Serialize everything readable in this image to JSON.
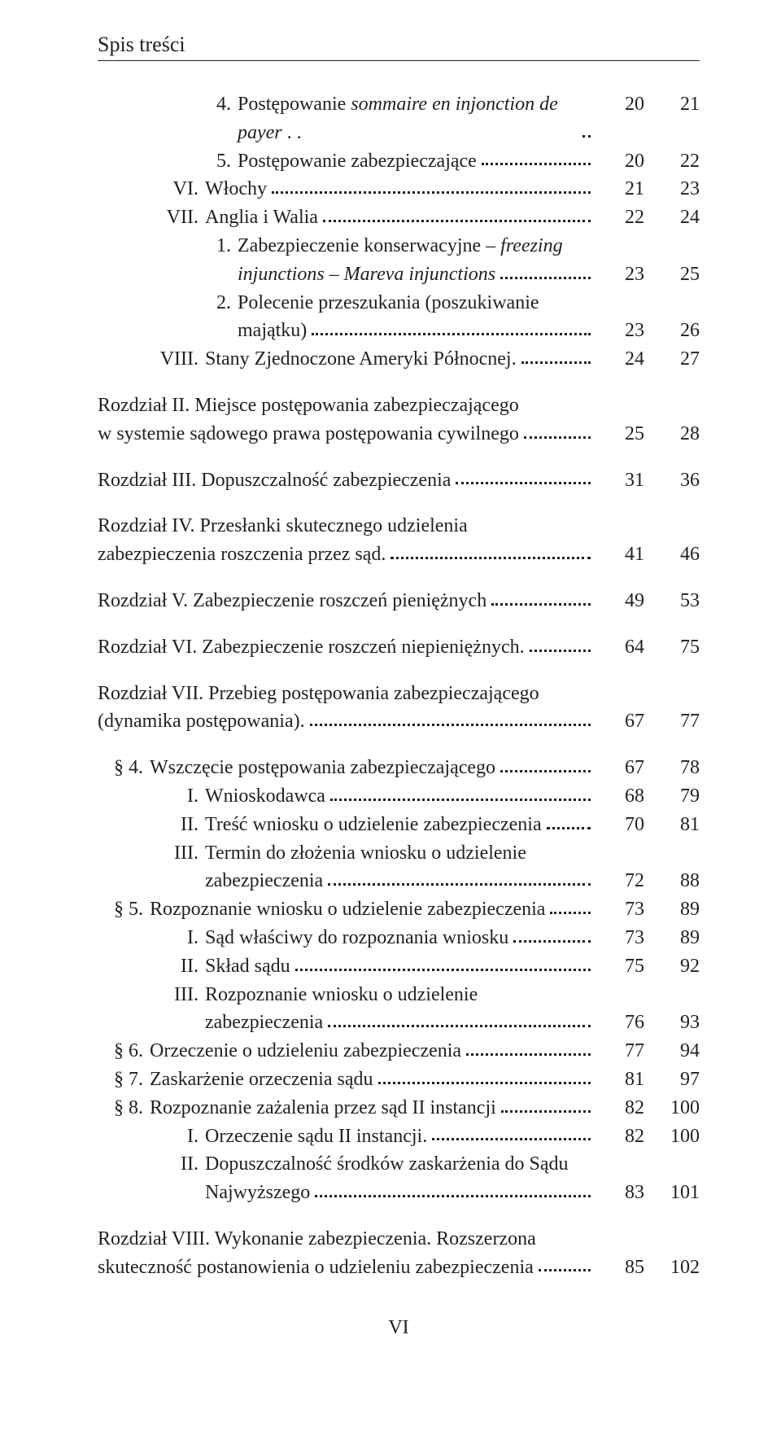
{
  "header": "Spis treści",
  "footer": "VI",
  "layout": {
    "indent_l1": 66,
    "indent_l2": 66,
    "indent_l3": 130,
    "indent_chapter": 0,
    "indent_section": 0
  },
  "entries": [
    {
      "indent": 130,
      "label": "4.",
      "label_w": 34,
      "text_parts": [
        {
          "t": "Postępowanie "
        },
        {
          "t": "sommaire en injonction de payer",
          "italic": true
        },
        {
          "t": " . ."
        }
      ],
      "hang": false,
      "c1": "20",
      "c2": "21"
    },
    {
      "indent": 130,
      "label": "5.",
      "label_w": 34,
      "text_parts": [
        {
          "t": "Postępowanie zabezpieczające"
        }
      ],
      "hang": false,
      "c1": "20",
      "c2": "22"
    },
    {
      "indent": 66,
      "label": "VI.",
      "label_w": 58,
      "text_parts": [
        {
          "t": "Włochy"
        }
      ],
      "hang": false,
      "c1": "21",
      "c2": "23"
    },
    {
      "indent": 66,
      "label": "VII.",
      "label_w": 58,
      "text_parts": [
        {
          "t": "Anglia i Walia"
        }
      ],
      "hang": false,
      "c1": "22",
      "c2": "24"
    },
    {
      "indent": 130,
      "label": "1.",
      "label_w": 34,
      "text_parts": [
        {
          "t": "Zabezpieczenie konserwacyjne – "
        },
        {
          "t": "freezing",
          "italic": true
        }
      ],
      "hang": true,
      "hang_parts": [
        {
          "t": "injunctions – Mareva injunctions",
          "italic": true
        }
      ],
      "c1": "23",
      "c2": "25"
    },
    {
      "indent": 130,
      "label": "2.",
      "label_w": 34,
      "text_parts": [
        {
          "t": "Polecenie przeszukania (poszukiwanie"
        }
      ],
      "hang": true,
      "hang_parts": [
        {
          "t": "majątku)"
        }
      ],
      "c1": "23",
      "c2": "26"
    },
    {
      "indent": 66,
      "label": "VIII.",
      "label_w": 58,
      "text_parts": [
        {
          "t": "Stany Zjednoczone Ameryki Północnej."
        }
      ],
      "hang": false,
      "c1": "24",
      "c2": "27"
    },
    {
      "gap": true,
      "indent": 0,
      "label": "",
      "label_w": 0,
      "text_parts": [
        {
          "t": "Rozdział II. Miejsce postępowania zabezpieczającego"
        }
      ],
      "hang": true,
      "hang_parts": [
        {
          "t": "w systemie sądowego prawa postępowania cywilnego"
        }
      ],
      "c1": "25",
      "c2": "28"
    },
    {
      "gap": true,
      "indent": 0,
      "label": "",
      "label_w": 0,
      "text_parts": [
        {
          "t": "Rozdział III. Dopuszczalność zabezpieczenia"
        }
      ],
      "hang": false,
      "c1": "31",
      "c2": "36"
    },
    {
      "gap": true,
      "indent": 0,
      "label": "",
      "label_w": 0,
      "text_parts": [
        {
          "t": "Rozdział IV. Przesłanki skutecznego udzielenia"
        }
      ],
      "hang": true,
      "hang_parts": [
        {
          "t": "zabezpieczenia roszczenia przez sąd."
        }
      ],
      "c1": "41",
      "c2": "46"
    },
    {
      "gap": true,
      "indent": 0,
      "label": "",
      "label_w": 0,
      "text_parts": [
        {
          "t": "Rozdział V. Zabezpieczenie roszczeń pieniężnych"
        }
      ],
      "hang": false,
      "c1": "49",
      "c2": "53"
    },
    {
      "gap": true,
      "indent": 0,
      "label": "",
      "label_w": 0,
      "text_parts": [
        {
          "t": "Rozdział VI. Zabezpieczenie roszczeń niepieniężnych."
        }
      ],
      "hang": false,
      "c1": "64",
      "c2": "75"
    },
    {
      "gap": true,
      "indent": 0,
      "label": "",
      "label_w": 0,
      "text_parts": [
        {
          "t": "Rozdział VII. Przebieg postępowania zabezpieczającego"
        }
      ],
      "hang": true,
      "hang_parts": [
        {
          "t": "(dynamika postępowania)."
        }
      ],
      "c1": "67",
      "c2": "77"
    },
    {
      "gap": true,
      "indent": 0,
      "label": "§ 4.",
      "label_w": 56,
      "text_parts": [
        {
          "t": "Wszczęcie postępowania zabezpieczającego"
        }
      ],
      "hang": false,
      "c1": "67",
      "c2": "78"
    },
    {
      "indent": 66,
      "label": "I.",
      "label_w": 58,
      "text_parts": [
        {
          "t": "Wnioskodawca"
        }
      ],
      "hang": false,
      "c1": "68",
      "c2": "79"
    },
    {
      "indent": 66,
      "label": "II.",
      "label_w": 58,
      "text_parts": [
        {
          "t": "Treść wniosku o udzielenie zabezpieczenia"
        }
      ],
      "hang": false,
      "c1": "70",
      "c2": "81"
    },
    {
      "indent": 66,
      "label": "III.",
      "label_w": 58,
      "text_parts": [
        {
          "t": "Termin do złożenia wniosku o udzielenie"
        }
      ],
      "hang": true,
      "hang_parts": [
        {
          "t": "zabezpieczenia"
        }
      ],
      "c1": "72",
      "c2": "88"
    },
    {
      "indent": 0,
      "label": "§ 5.",
      "label_w": 56,
      "text_parts": [
        {
          "t": "Rozpoznanie wniosku o udzielenie zabezpieczenia"
        }
      ],
      "hang": false,
      "c1": "73",
      "c2": "89"
    },
    {
      "indent": 66,
      "label": "I.",
      "label_w": 58,
      "text_parts": [
        {
          "t": "Sąd właściwy do rozpoznania wniosku"
        }
      ],
      "hang": false,
      "c1": "73",
      "c2": "89"
    },
    {
      "indent": 66,
      "label": "II.",
      "label_w": 58,
      "text_parts": [
        {
          "t": "Skład sądu"
        }
      ],
      "hang": false,
      "c1": "75",
      "c2": "92"
    },
    {
      "indent": 66,
      "label": "III.",
      "label_w": 58,
      "text_parts": [
        {
          "t": "Rozpoznanie wniosku o udzielenie"
        }
      ],
      "hang": true,
      "hang_parts": [
        {
          "t": "zabezpieczenia"
        }
      ],
      "c1": "76",
      "c2": "93"
    },
    {
      "indent": 0,
      "label": "§ 6.",
      "label_w": 56,
      "text_parts": [
        {
          "t": "Orzeczenie o udzieleniu zabezpieczenia"
        }
      ],
      "hang": false,
      "c1": "77",
      "c2": "94"
    },
    {
      "indent": 0,
      "label": "§ 7.",
      "label_w": 56,
      "text_parts": [
        {
          "t": "Zaskarżenie orzeczenia sądu"
        }
      ],
      "hang": false,
      "c1": "81",
      "c2": "97"
    },
    {
      "indent": 0,
      "label": "§ 8.",
      "label_w": 56,
      "text_parts": [
        {
          "t": "Rozpoznanie zażalenia przez sąd II instancji"
        }
      ],
      "hang": false,
      "c1": "82",
      "c2": "100"
    },
    {
      "indent": 66,
      "label": "I.",
      "label_w": 58,
      "text_parts": [
        {
          "t": "Orzeczenie sądu II instancji."
        }
      ],
      "hang": false,
      "c1": "82",
      "c2": "100"
    },
    {
      "indent": 66,
      "label": "II.",
      "label_w": 58,
      "text_parts": [
        {
          "t": "Dopuszczalność środków zaskarżenia do Sądu"
        }
      ],
      "hang": true,
      "hang_parts": [
        {
          "t": "Najwyższego"
        }
      ],
      "c1": "83",
      "c2": "101"
    },
    {
      "gap": true,
      "indent": 0,
      "label": "",
      "label_w": 0,
      "text_parts": [
        {
          "t": "Rozdział VIII. Wykonanie zabezpieczenia. Rozszerzona"
        }
      ],
      "hang": true,
      "hang_parts": [
        {
          "t": "skuteczność postanowienia o udzieleniu zabezpieczenia"
        }
      ],
      "c1": "85",
      "c2": "102"
    }
  ]
}
